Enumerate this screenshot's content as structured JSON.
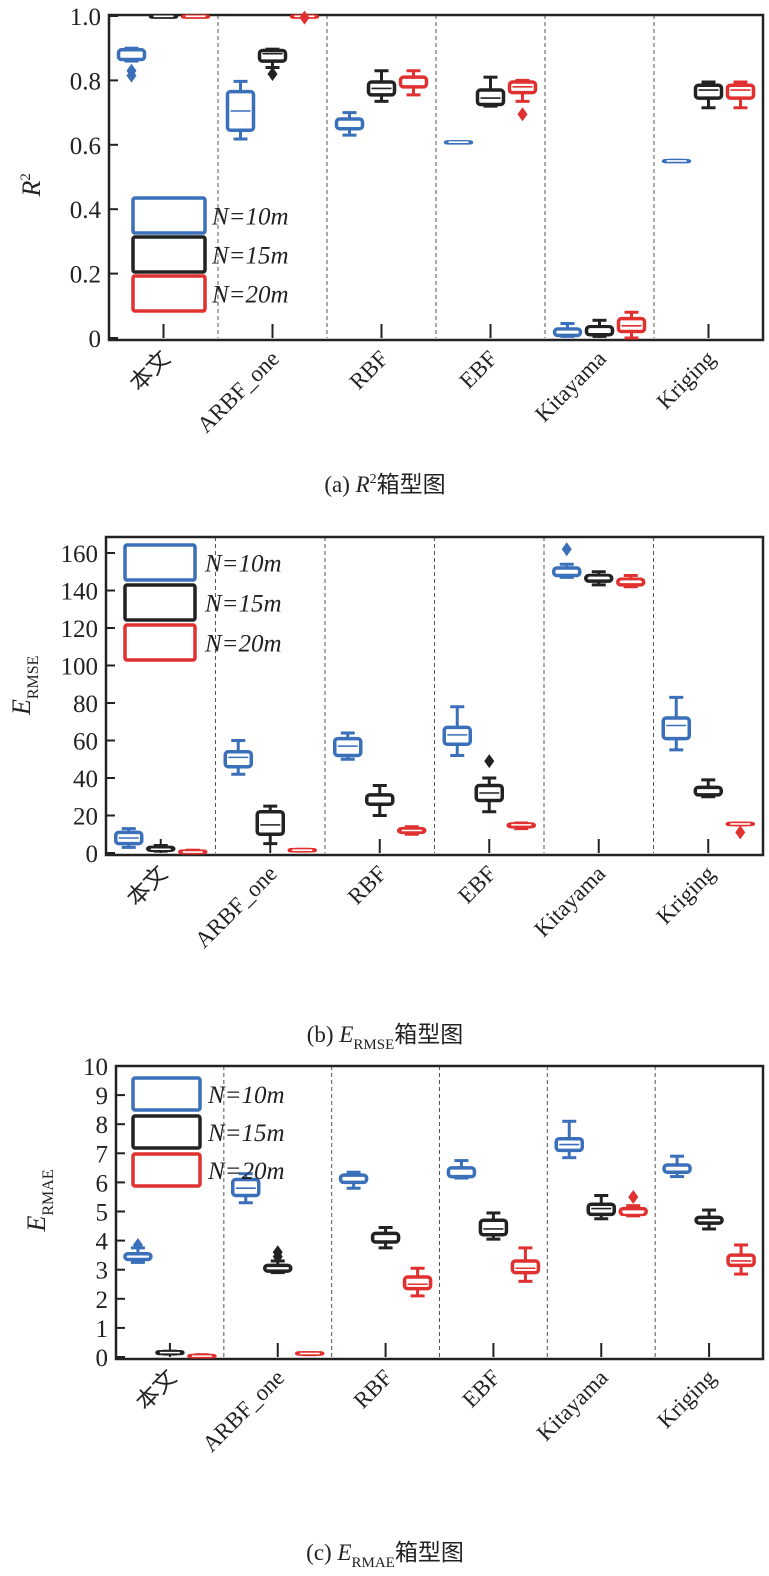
{
  "colors": {
    "N=10m": "#3a6fb9",
    "N=15m": "#222222",
    "N=20m": "#e0302f"
  },
  "chart_data": [
    {
      "type": "box",
      "title": "(a) R²箱型图",
      "caption_prefix": "(a) ",
      "caption_var": "R",
      "caption_sup": "2",
      "caption_sub": "",
      "caption_suffix": "箱型图",
      "ylabel": "R",
      "ylabel_sup": "2",
      "ylabel_sub": "",
      "ylim": [
        0,
        1.0
      ],
      "yticks": [
        0,
        0.2,
        0.4,
        0.6,
        0.8,
        1.0
      ],
      "ytick_labels": [
        "0",
        "0.2",
        "0.4",
        "0.6",
        "0.8",
        "1.0"
      ],
      "categories": [
        "本文",
        "ARBF_one",
        "RBF",
        "EBF",
        "Kitayama",
        "Kriging"
      ],
      "legend_position": "lower-left",
      "series": [
        {
          "name": "N=10m",
          "boxes": [
            {
              "whislo": 0.86,
              "q1": 0.865,
              "med": 0.885,
              "q3": 0.895,
              "whishi": 0.9,
              "fliers": [
                0.83,
                0.815
              ]
            },
            {
              "whislo": 0.618,
              "q1": 0.645,
              "med": 0.705,
              "q3": 0.765,
              "whishi": 0.797,
              "fliers": []
            },
            {
              "whislo": 0.63,
              "q1": 0.65,
              "med": 0.665,
              "q3": 0.68,
              "whishi": 0.7,
              "fliers": []
            },
            {
              "whislo": 0.606,
              "q1": 0.607,
              "med": 0.608,
              "q3": 0.609,
              "whishi": 0.61,
              "fliers": []
            },
            {
              "whislo": 0.005,
              "q1": 0.008,
              "med": 0.02,
              "q3": 0.028,
              "whishi": 0.045,
              "fliers": []
            },
            {
              "whislo": 0.548,
              "q1": 0.549,
              "med": 0.55,
              "q3": 0.551,
              "whishi": 0.552,
              "fliers": []
            }
          ]
        },
        {
          "name": "N=15m",
          "boxes": [
            {
              "whislo": 0.997,
              "q1": 0.998,
              "med": 0.999,
              "q3": 0.9995,
              "whishi": 1.0,
              "fliers": []
            },
            {
              "whislo": 0.84,
              "q1": 0.86,
              "med": 0.883,
              "q3": 0.893,
              "whishi": 0.897,
              "fliers": [
                0.82
              ]
            },
            {
              "whislo": 0.735,
              "q1": 0.755,
              "med": 0.775,
              "q3": 0.795,
              "whishi": 0.83,
              "fliers": []
            },
            {
              "whislo": 0.72,
              "q1": 0.725,
              "med": 0.745,
              "q3": 0.77,
              "whishi": 0.81,
              "fliers": []
            },
            {
              "whislo": 0.005,
              "q1": 0.01,
              "med": 0.028,
              "q3": 0.035,
              "whishi": 0.055,
              "fliers": []
            },
            {
              "whislo": 0.715,
              "q1": 0.745,
              "med": 0.77,
              "q3": 0.785,
              "whishi": 0.795,
              "fliers": []
            }
          ]
        },
        {
          "name": "N=20m",
          "boxes": [
            {
              "whislo": 0.997,
              "q1": 0.998,
              "med": 0.999,
              "q3": 0.9995,
              "whishi": 1.0,
              "fliers": []
            },
            {
              "whislo": 0.997,
              "q1": 0.998,
              "med": 0.999,
              "q3": 0.9995,
              "whishi": 1.0,
              "fliers": [
                0.995
              ]
            },
            {
              "whislo": 0.755,
              "q1": 0.78,
              "med": 0.795,
              "q3": 0.81,
              "whishi": 0.83,
              "fliers": []
            },
            {
              "whislo": 0.735,
              "q1": 0.762,
              "med": 0.78,
              "q3": 0.795,
              "whishi": 0.8,
              "fliers": [
                0.695
              ]
            },
            {
              "whislo": 0.0,
              "q1": 0.02,
              "med": 0.038,
              "q3": 0.06,
              "whishi": 0.08,
              "fliers": []
            },
            {
              "whislo": 0.715,
              "q1": 0.745,
              "med": 0.77,
              "q3": 0.785,
              "whishi": 0.795,
              "fliers": []
            }
          ]
        }
      ]
    },
    {
      "type": "box",
      "title": "(b) E_RMSE箱型图",
      "caption_prefix": "(b) ",
      "caption_var": "E",
      "caption_sup": "",
      "caption_sub": "RMSE",
      "caption_suffix": "箱型图",
      "ylabel": "E",
      "ylabel_sup": "",
      "ylabel_sub": "RMSE",
      "ylim": [
        0,
        170
      ],
      "yticks": [
        0,
        20,
        40,
        60,
        80,
        100,
        120,
        140,
        160
      ],
      "ytick_labels": [
        "0",
        "20",
        "40",
        "60",
        "80",
        "100",
        "120",
        "140",
        "160"
      ],
      "categories": [
        "本文",
        "ARBF_one",
        "RBF",
        "EBF",
        "Kitayama",
        "Kriging"
      ],
      "legend_position": "upper-left",
      "series": [
        {
          "name": "N=10m",
          "boxes": [
            {
              "whislo": 3,
              "q1": 5,
              "med": 8,
              "q3": 11,
              "whishi": 13,
              "fliers": []
            },
            {
              "whislo": 42,
              "q1": 46,
              "med": 51,
              "q3": 54,
              "whishi": 60,
              "fliers": []
            },
            {
              "whislo": 50,
              "q1": 52,
              "med": 57,
              "q3": 61,
              "whishi": 64,
              "fliers": []
            },
            {
              "whislo": 52,
              "q1": 58,
              "med": 63,
              "q3": 67,
              "whishi": 78,
              "fliers": []
            },
            {
              "whislo": 147,
              "q1": 148,
              "med": 150,
              "q3": 152,
              "whishi": 154,
              "fliers": [
                162
              ]
            },
            {
              "whislo": 55,
              "q1": 61,
              "med": 68,
              "q3": 72,
              "whishi": 83,
              "fliers": []
            }
          ]
        },
        {
          "name": "N=15m",
          "boxes": [
            {
              "whislo": 1,
              "q1": 1.5,
              "med": 2,
              "q3": 3,
              "whishi": 4,
              "fliers": []
            },
            {
              "whislo": 5,
              "q1": 10,
              "med": 15,
              "q3": 22,
              "whishi": 25,
              "fliers": []
            },
            {
              "whislo": 20,
              "q1": 26,
              "med": 29,
              "q3": 31,
              "whishi": 36,
              "fliers": []
            },
            {
              "whislo": 22,
              "q1": 28,
              "med": 32,
              "q3": 36,
              "whishi": 40,
              "fliers": [
                49
              ]
            },
            {
              "whislo": 143,
              "q1": 145,
              "med": 147,
              "q3": 148,
              "whishi": 150,
              "fliers": []
            },
            {
              "whislo": 30,
              "q1": 31,
              "med": 33,
              "q3": 35,
              "whishi": 39,
              "fliers": []
            }
          ]
        },
        {
          "name": "N=20m",
          "boxes": [
            {
              "whislo": 0,
              "q1": 0.2,
              "med": 0.5,
              "q3": 1,
              "whishi": 1.5,
              "fliers": []
            },
            {
              "whislo": 1,
              "q1": 1.2,
              "med": 1.5,
              "q3": 1.8,
              "whishi": 2,
              "fliers": []
            },
            {
              "whislo": 10,
              "q1": 11,
              "med": 12,
              "q3": 13,
              "whishi": 14,
              "fliers": []
            },
            {
              "whislo": 13,
              "q1": 14,
              "med": 15,
              "q3": 15.5,
              "whishi": 16,
              "fliers": []
            },
            {
              "whislo": 142,
              "q1": 143,
              "med": 145,
              "q3": 146,
              "whishi": 148,
              "fliers": []
            },
            {
              "whislo": 15,
              "q1": 15.2,
              "med": 15.5,
              "q3": 15.8,
              "whishi": 16,
              "fliers": [
                11
              ]
            }
          ]
        }
      ]
    },
    {
      "type": "box",
      "title": "(c) E_RMAE箱型图",
      "caption_prefix": "(c) ",
      "caption_var": "E",
      "caption_sup": "",
      "caption_sub": "RMAE",
      "caption_suffix": "箱型图",
      "ylabel": "E",
      "ylabel_sup": "",
      "ylabel_sub": "RMAE",
      "ylim": [
        0,
        10
      ],
      "yticks": [
        0,
        1,
        2,
        3,
        4,
        5,
        6,
        7,
        8,
        9,
        10
      ],
      "ytick_labels": [
        "0",
        "1",
        "2",
        "3",
        "4",
        "5",
        "6",
        "7",
        "8",
        "9",
        "10"
      ],
      "categories": [
        "本文",
        "ARBF_one",
        "RBF",
        "EBF",
        "Kitayama",
        "Kriging"
      ],
      "legend_position": "upper-left",
      "series": [
        {
          "name": "N=10m",
          "boxes": [
            {
              "whislo": 3.25,
              "q1": 3.35,
              "med": 3.45,
              "q3": 3.55,
              "whishi": 3.75,
              "fliers": [
                3.85
              ]
            },
            {
              "whislo": 5.3,
              "q1": 5.55,
              "med": 5.8,
              "q3": 6.1,
              "whishi": 6.3,
              "fliers": []
            },
            {
              "whislo": 5.8,
              "q1": 6.0,
              "med": 6.12,
              "q3": 6.25,
              "whishi": 6.35,
              "fliers": []
            },
            {
              "whislo": 6.15,
              "q1": 6.2,
              "med": 6.35,
              "q3": 6.5,
              "whishi": 6.75,
              "fliers": []
            },
            {
              "whislo": 6.85,
              "q1": 7.1,
              "med": 7.3,
              "q3": 7.5,
              "whishi": 8.1,
              "fliers": []
            },
            {
              "whislo": 6.2,
              "q1": 6.35,
              "med": 6.45,
              "q3": 6.6,
              "whishi": 6.9,
              "fliers": []
            }
          ]
        },
        {
          "name": "N=15m",
          "boxes": [
            {
              "whislo": 0.1,
              "q1": 0.12,
              "med": 0.15,
              "q3": 0.18,
              "whishi": 0.2,
              "fliers": []
            },
            {
              "whislo": 2.9,
              "q1": 2.95,
              "med": 3.05,
              "q3": 3.15,
              "whishi": 3.3,
              "fliers": [
                3.45,
                3.6
              ]
            },
            {
              "whislo": 3.75,
              "q1": 3.95,
              "med": 4.1,
              "q3": 4.25,
              "whishi": 4.45,
              "fliers": []
            },
            {
              "whislo": 4.05,
              "q1": 4.2,
              "med": 4.4,
              "q3": 4.7,
              "whishi": 4.95,
              "fliers": []
            },
            {
              "whislo": 4.75,
              "q1": 4.9,
              "med": 5.1,
              "q3": 5.25,
              "whishi": 5.55,
              "fliers": []
            },
            {
              "whislo": 4.4,
              "q1": 4.6,
              "med": 4.7,
              "q3": 4.8,
              "whishi": 5.05,
              "fliers": []
            }
          ]
        },
        {
          "name": "N=20m",
          "boxes": [
            {
              "whislo": 0.0,
              "q1": 0.01,
              "med": 0.03,
              "q3": 0.05,
              "whishi": 0.08,
              "fliers": []
            },
            {
              "whislo": 0.08,
              "q1": 0.1,
              "med": 0.12,
              "q3": 0.14,
              "whishi": 0.15,
              "fliers": []
            },
            {
              "whislo": 2.1,
              "q1": 2.35,
              "med": 2.5,
              "q3": 2.75,
              "whishi": 3.05,
              "fliers": []
            },
            {
              "whislo": 2.6,
              "q1": 2.9,
              "med": 3.05,
              "q3": 3.3,
              "whishi": 3.75,
              "fliers": []
            },
            {
              "whislo": 4.85,
              "q1": 4.9,
              "med": 4.95,
              "q3": 5.1,
              "whishi": 5.2,
              "fliers": [
                5.5
              ]
            },
            {
              "whislo": 2.85,
              "q1": 3.15,
              "med": 3.3,
              "q3": 3.5,
              "whishi": 3.85,
              "fliers": []
            }
          ]
        }
      ]
    }
  ]
}
